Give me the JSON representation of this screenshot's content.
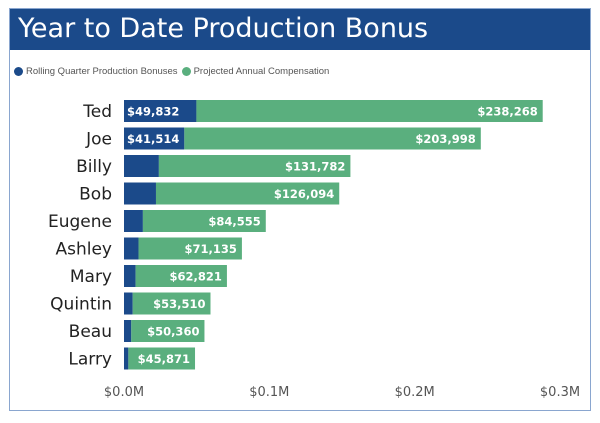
{
  "chart_data": {
    "type": "bar",
    "orientation": "horizontal",
    "stacked": true,
    "title": "Year to Date Production Bonus",
    "categories": [
      "Ted",
      "Joe",
      "Billy",
      "Bob",
      "Eugene",
      "Ashley",
      "Mary",
      "Quintin",
      "Beau",
      "Larry"
    ],
    "series": [
      {
        "name": "Rolling Quarter Production Bonuses",
        "color": "#1b4a8a",
        "values": [
          49832,
          41514,
          24000,
          22000,
          13000,
          10000,
          8000,
          6000,
          5000,
          3000
        ],
        "labels": [
          "$49,832",
          "$41,514",
          "",
          "",
          "",
          "",
          "",
          "",
          "",
          ""
        ]
      },
      {
        "name": "Projected Annual Compensation",
        "color": "#5aaf7e",
        "values": [
          238268,
          203998,
          131782,
          126094,
          84555,
          71135,
          62821,
          53510,
          50360,
          45871
        ],
        "labels": [
          "$238,268",
          "$203,998",
          "$131,782",
          "$126,094",
          "$84,555",
          "$71,135",
          "$62,821",
          "$53,510",
          "$50,360",
          "$45,871"
        ]
      }
    ],
    "xlim": [
      0,
      300000
    ],
    "xticks": [
      0,
      100000,
      200000,
      300000
    ],
    "xtick_labels": [
      "$0.0M",
      "$0.1M",
      "$0.2M",
      "$0.3M"
    ],
    "grid": false,
    "legend_position": "top-left"
  }
}
